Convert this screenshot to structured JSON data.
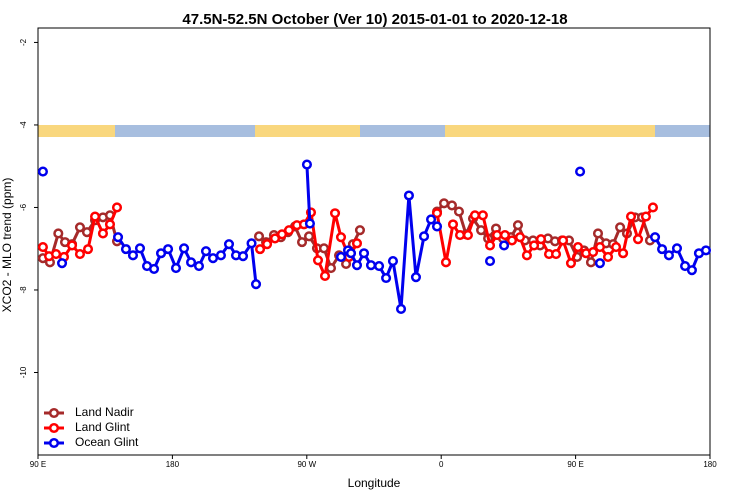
{
  "chart_data": {
    "type": "line",
    "title": "47.5N-52.5N October (Ver 10)   2015-01-01 to 2020-12-18",
    "x_label": "Longitude",
    "y_label": "XCO2 - MLO trend (ppm)",
    "xlim": [
      90,
      540
    ],
    "ylim": [
      -12,
      -1.65
    ],
    "xticks": [
      {
        "value": 90,
        "label": "90 E"
      },
      180,
      {
        "value": 270,
        "label": "90 W"
      },
      {
        "value": 360,
        "label": "0"
      },
      {
        "value": 450,
        "label": "90 E"
      },
      {
        "value": 540,
        "label": "180"
      }
    ],
    "yticks": [
      -2,
      -4,
      -6,
      -8,
      -10
    ],
    "legend": "bottom-left",
    "series": [
      {
        "name": "Land Nadir",
        "color": "#a52a2a",
        "x": [
          93.3,
          98.0,
          103.6,
          108.1,
          112.8,
          118.1,
          122.8,
          128.2,
          133.5,
          138.2,
          142.9,
          null,
          238.0,
          242.7,
          248.0,
          252.7,
          257.4,
          262.1,
          266.8,
          271.5,
          276.8,
          281.5,
          286.2,
          291.6,
          296.3,
          300.9,
          305.6,
          null,
          357.2,
          361.9,
          367.2,
          371.9,
          376.6,
          381.3,
          386.7,
          391.4,
          396.7,
          401.4,
          406.7,
          411.4,
          416.1,
          421.5,
          426.2,
          431.5,
          436.2,
          440.9,
          445.6,
          451.0,
          455.6,
          460.3,
          465.0,
          470.4,
          475.1,
          479.8,
          484.4,
          489.8,
          494.5,
          499.8
        ],
        "values": [
          -7.23,
          -7.33,
          -6.63,
          -6.84,
          -6.89,
          -6.48,
          -6.6,
          -6.31,
          -6.24,
          -6.19,
          -6.82,
          null,
          -6.7,
          -6.84,
          -6.67,
          -6.72,
          -6.6,
          -6.46,
          -6.84,
          -6.7,
          -6.99,
          -6.99,
          -7.47,
          -7.16,
          -7.37,
          -6.89,
          -6.55,
          null,
          -6.1,
          -5.9,
          -5.95,
          -6.1,
          -6.65,
          -6.27,
          -6.55,
          -6.75,
          -6.51,
          -6.75,
          -6.72,
          -6.43,
          -6.8,
          -6.8,
          -6.92,
          -6.75,
          -6.82,
          -6.8,
          -6.8,
          -7.2,
          -7.04,
          -7.33,
          -6.63,
          -6.87,
          -6.89,
          -6.48,
          -6.63,
          -6.24,
          -6.24,
          -6.8
        ]
      },
      {
        "name": "Land Glint",
        "color": "#ff0000",
        "x": [
          93.3,
          97.4,
          102.1,
          107.4,
          112.8,
          118.1,
          123.5,
          128.2,
          133.5,
          138.2,
          142.9,
          null,
          238.7,
          243.4,
          248.7,
          253.4,
          258.1,
          263.4,
          268.1,
          272.8,
          277.5,
          282.2,
          288.9,
          292.9,
          298.3,
          303.6,
          null,
          357.2,
          363.2,
          367.9,
          372.6,
          377.9,
          382.6,
          387.9,
          392.7,
          397.4,
          402.7,
          407.4,
          412.8,
          417.4,
          422.2,
          426.8,
          432.2,
          436.9,
          441.6,
          446.9,
          451.6,
          457.0,
          461.7,
          466.3,
          471.7,
          477.1,
          481.8,
          487.1,
          491.8,
          497.1,
          501.8
        ],
        "values": [
          -6.96,
          -7.18,
          -7.13,
          -7.2,
          -6.92,
          -7.13,
          -7.01,
          -6.22,
          -6.63,
          -6.41,
          -6.0,
          null,
          -7.01,
          -6.89,
          -6.75,
          -6.65,
          -6.55,
          -6.43,
          -6.41,
          -6.12,
          -7.28,
          -7.66,
          -6.14,
          -6.72,
          -7.2,
          -6.87,
          null,
          -6.14,
          -7.33,
          -6.41,
          -6.67,
          -6.67,
          -6.19,
          -6.19,
          -6.92,
          -6.67,
          -6.67,
          -6.8,
          -6.72,
          -7.16,
          -6.92,
          -6.77,
          -7.13,
          -7.13,
          -6.8,
          -7.35,
          -6.96,
          -7.11,
          -7.08,
          -6.96,
          -7.2,
          -6.96,
          -7.11,
          -6.22,
          -6.77,
          -6.22,
          -6.0
        ]
      },
      {
        "name": "Ocean Glint",
        "color": "#0000ee",
        "x": [
          93.3,
          null,
          106.1,
          null,
          143.6,
          148.9,
          153.6,
          158.3,
          163.0,
          167.7,
          172.4,
          177.1,
          182.4,
          187.8,
          192.5,
          197.8,
          202.5,
          207.2,
          212.5,
          217.9,
          222.6,
          227.3,
          233.0,
          236.0,
          null,
          270.1,
          272.1,
          null,
          292.9,
          297.6,
          299.6,
          303.6,
          308.3,
          313.0,
          318.4,
          323.1,
          327.7,
          333.1,
          338.4,
          343.1,
          348.5,
          353.2,
          357.2,
          null,
          392.7,
          null,
          402.1,
          null,
          453.0,
          null,
          466.3,
          null,
          503.2,
          507.9,
          512.5,
          517.9,
          523.3,
          527.9,
          532.6,
          537.3
        ],
        "values": [
          -5.13,
          null,
          -7.35,
          null,
          -6.72,
          -7.01,
          -7.16,
          -6.99,
          -7.42,
          -7.49,
          -7.11,
          -7.01,
          -7.47,
          -6.99,
          -7.33,
          -7.42,
          -7.06,
          -7.23,
          -7.16,
          -6.89,
          -7.16,
          -7.18,
          -6.87,
          -7.86,
          null,
          -4.96,
          -6.39,
          null,
          -7.2,
          -7.04,
          -7.11,
          -7.4,
          -7.11,
          -7.4,
          -7.42,
          -7.71,
          -7.3,
          -8.46,
          -5.71,
          -7.69,
          -6.7,
          -6.29,
          -6.46,
          null,
          -7.3,
          null,
          -6.92,
          null,
          -5.13,
          null,
          -7.35,
          null,
          -6.72,
          -7.01,
          -7.16,
          -6.99,
          -7.42,
          -7.52,
          -7.11,
          -7.04
        ]
      }
    ]
  }
}
